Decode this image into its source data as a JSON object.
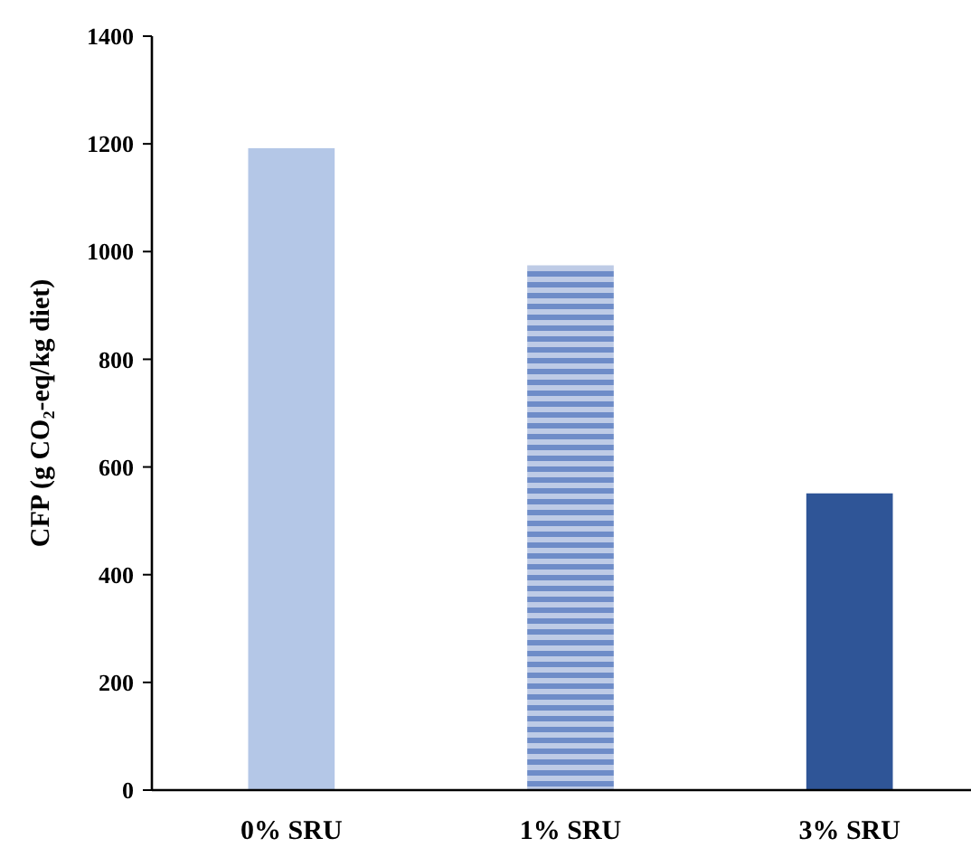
{
  "chart_data": {
    "type": "bar",
    "ylabel": "CFP (g CO₂-eq/kg diet)",
    "categories": [
      "0% SRU",
      "1% SRU",
      "3% SRU"
    ],
    "values": [
      1192,
      974,
      551
    ],
    "colors": [
      "#b4c7e7",
      "#6e8cc8",
      "#2f5597"
    ],
    "ylim": [
      0,
      1400
    ],
    "yticks": [
      0,
      200,
      400,
      600,
      800,
      1000,
      1200,
      1400
    ],
    "grid": false
  }
}
